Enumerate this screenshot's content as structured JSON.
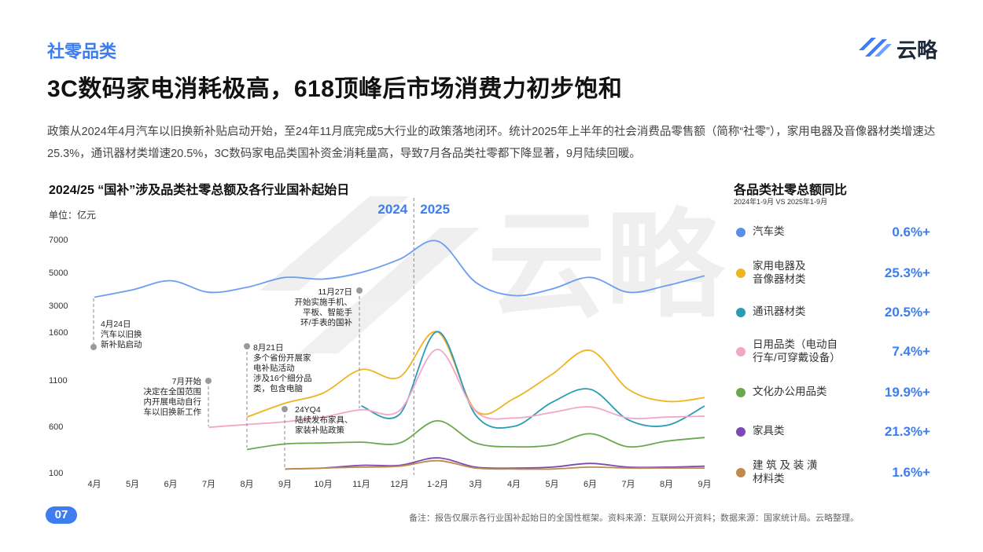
{
  "header": {
    "section_label": "社零品类",
    "title": "3C数码家电消耗极高，618顶峰后市场消费力初步饱和",
    "logo_text": "云略",
    "watermark_text": "云略"
  },
  "intro_text": "政策从2024年4月汽车以旧换新补贴启动开始，至24年11月底完成5大行业的政策落地闭环。统计2025年上半年的社会消费品零售额（简称“社零”），家用电器及音像器材类增速达25.3%，通讯器材类增速20.5%，3C数码家电品类国补资金消耗量高，导致7月各品类社零都下降显著，9月陆续回暖。",
  "legend": {
    "title": "各品类社零总额同比",
    "subtitle": "2024年1-9月 VS 2025年1-9月",
    "items": [
      {
        "name": "汽车类",
        "value": "0.6%+",
        "color": "#5b8ee8"
      },
      {
        "name": "家用电器及\n音像器材类",
        "value": "25.3%+",
        "color": "#f0b322"
      },
      {
        "name": "通讯器材类",
        "value": "20.5%+",
        "color": "#2a9bb5"
      },
      {
        "name": "日用品类（电动自\n行车/可穿戴设备）",
        "value": "7.4%+",
        "color": "#f2a6c9"
      },
      {
        "name": "文化办公用品类",
        "value": "19.9%+",
        "color": "#6aa84f"
      },
      {
        "name": "家具类",
        "value": "21.3%+",
        "color": "#7b4bb3"
      },
      {
        "name": "建 筑 及 装 潢\n材料类",
        "value": "1.6%+",
        "color": "#c08a4a"
      }
    ]
  },
  "chart_data": {
    "type": "line",
    "title": "2024/25 “国补”涉及品类社零总额及各行业国补起始日",
    "unit": "单位：亿元",
    "ylabel": "",
    "xlabel": "",
    "categories": [
      "4月",
      "5月",
      "6月",
      "7月",
      "8月",
      "9月",
      "10月",
      "11月",
      "12月",
      "1-2月",
      "3月",
      "4月",
      "5月",
      "6月",
      "7月",
      "8月",
      "9月"
    ],
    "y_ticks": [
      7000,
      5000,
      3000,
      1600,
      1100,
      600,
      100
    ],
    "y_scale": "piecewise",
    "year_labels": [
      "2024",
      "2025"
    ],
    "divider_between": [
      "12月",
      "1-2月"
    ],
    "series": [
      {
        "name": "汽车类",
        "color": "#6a9ef0",
        "values": [
          3500,
          3950,
          4500,
          3800,
          4100,
          4700,
          4600,
          5000,
          5800,
          6900,
          4400,
          3600,
          4000,
          4700,
          3800,
          4200,
          4800
        ]
      },
      {
        "name": "家用电器及音像器材类",
        "color": "#f0b322",
        "values": [
          null,
          null,
          null,
          null,
          700,
          850,
          960,
          1210,
          1130,
          1610,
          770,
          900,
          1160,
          1410,
          1000,
          870,
          910
        ]
      },
      {
        "name": "通讯器材类",
        "color": "#2a9bb5",
        "values": [
          null,
          null,
          null,
          null,
          null,
          null,
          null,
          820,
          730,
          1630,
          720,
          600,
          860,
          1000,
          670,
          610,
          820
        ]
      },
      {
        "name": "日用品类（电动自行车/可穿戴设备）",
        "color": "#f2a6c9",
        "values": [
          null,
          null,
          null,
          590,
          620,
          650,
          700,
          780,
          770,
          1420,
          760,
          690,
          750,
          810,
          690,
          700,
          710
        ]
      },
      {
        "name": "文化办公用品类",
        "color": "#6aa84f",
        "values": [
          null,
          null,
          null,
          null,
          350,
          410,
          420,
          430,
          420,
          660,
          420,
          380,
          400,
          520,
          380,
          440,
          480
        ]
      },
      {
        "name": "家具类",
        "color": "#7b4bb3",
        "values": [
          null,
          null,
          null,
          null,
          null,
          140,
          150,
          180,
          180,
          260,
          160,
          150,
          160,
          200,
          160,
          160,
          170
        ]
      },
      {
        "name": "建筑及装潢材料类",
        "color": "#c08a4a",
        "values": [
          null,
          null,
          null,
          null,
          null,
          140,
          150,
          160,
          170,
          230,
          150,
          140,
          140,
          160,
          150,
          150,
          150
        ]
      }
    ],
    "annotations": [
      {
        "date": "4月24日",
        "text": "汽车以旧换新补贴启动",
        "lines": [
          "4月24日",
          "汽车以旧换",
          "新补贴启动"
        ]
      },
      {
        "date": "7月开始",
        "text": "决定在全国范围内开展电动自行车以旧换新工作",
        "lines": [
          "7月开始",
          "决定在全国范围",
          "内开展电动自行",
          "车以旧换新工作"
        ]
      },
      {
        "date": "8月21日",
        "text": "多个省份开展家电补贴活动涉及16个细分品类，包含电脑",
        "lines": [
          "8月21日",
          "多个省份开展家",
          "电补贴活动",
          "涉及16个细分品",
          "类，包含电脑"
        ]
      },
      {
        "date": "24YQ4",
        "text": "陆续发布家具、家装补贴政策",
        "lines": [
          "24YQ4",
          "陆续发布家具、",
          "家装补贴政策"
        ]
      },
      {
        "date": "11月27日",
        "text": "开始实施手机、平板、智能手环/手表的国补",
        "lines": [
          "11月27日",
          "开始实施手机、",
          "平板、智能手",
          "环/手表的国补"
        ]
      }
    ]
  },
  "footer": {
    "page_number": "07",
    "note": "备注：报告仅展示各行业国补起始日的全国性框架。资料来源：互联网公开资料；数据来源：国家统计局。云略整理。"
  }
}
